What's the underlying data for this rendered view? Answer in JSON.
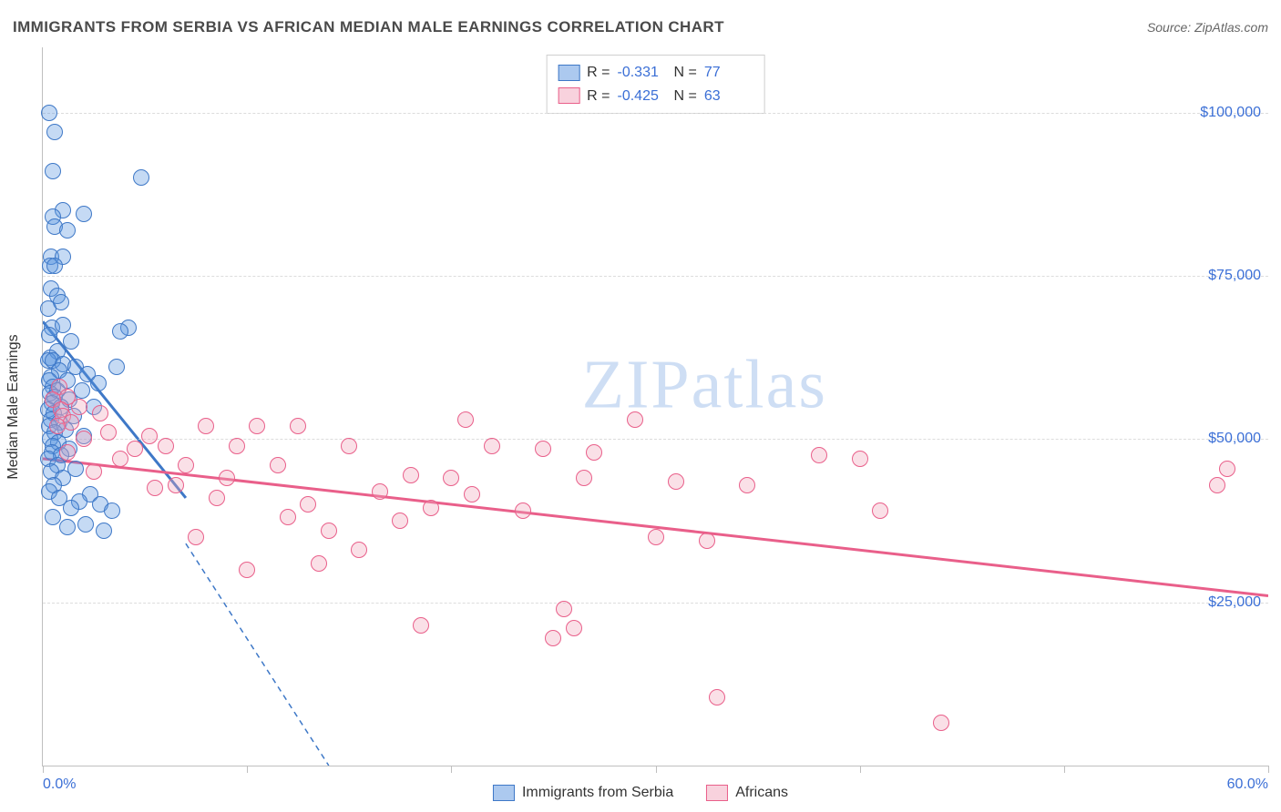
{
  "header": {
    "title": "IMMIGRANTS FROM SERBIA VS AFRICAN MEDIAN MALE EARNINGS CORRELATION CHART",
    "source": "Source: ZipAtlas.com"
  },
  "watermark": {
    "text": "ZIPatlas",
    "color": "#cedef4"
  },
  "chart": {
    "type": "scatter",
    "background_color": "#ffffff",
    "grid_color": "#dcdcdc",
    "axis_color": "#bfbfbf",
    "text_color": "#333333",
    "ylabel": "Median Male Earnings",
    "ylabel_fontsize": 16,
    "xlim": [
      0,
      60
    ],
    "ylim": [
      0,
      110000
    ],
    "ytick_values": [
      25000,
      50000,
      75000,
      100000
    ],
    "ytick_labels": [
      "$25,000",
      "$50,000",
      "$75,000",
      "$100,000"
    ],
    "ytick_color": "#3b6fd6",
    "xtick_values": [
      0,
      10,
      20,
      30,
      40,
      50,
      60
    ],
    "xlabel_min": "0.0%",
    "xlabel_max": "60.0%",
    "marker_radius": 8,
    "marker_stroke_width": 1.5,
    "marker_fill_opacity": 0.35,
    "series": [
      {
        "name": "Immigrants from Serbia",
        "color": "#5a94df",
        "stroke": "#3e78c7",
        "trend": {
          "x0": 0,
          "y0": 68000,
          "x1": 7,
          "y1": 41000,
          "solid_until_x": 7,
          "dash_to_x": 14,
          "dash_to_y": 0,
          "width": 3
        },
        "stats": {
          "R": "-0.331",
          "N": "77"
        },
        "points": [
          [
            0.3,
            100000
          ],
          [
            0.6,
            97000
          ],
          [
            0.5,
            91000
          ],
          [
            4.8,
            90000
          ],
          [
            1.0,
            85000
          ],
          [
            2.0,
            84500
          ],
          [
            0.5,
            84000
          ],
          [
            0.6,
            82500
          ],
          [
            1.2,
            82000
          ],
          [
            0.4,
            78000
          ],
          [
            1.0,
            78000
          ],
          [
            0.35,
            76500
          ],
          [
            0.6,
            76500
          ],
          [
            0.4,
            73000
          ],
          [
            0.7,
            72000
          ],
          [
            0.9,
            71000
          ],
          [
            0.25,
            70000
          ],
          [
            0.45,
            67000
          ],
          [
            1.0,
            67500
          ],
          [
            4.2,
            67000
          ],
          [
            3.8,
            66500
          ],
          [
            0.3,
            66000
          ],
          [
            1.4,
            65000
          ],
          [
            0.7,
            63500
          ],
          [
            0.35,
            62500
          ],
          [
            0.25,
            62000
          ],
          [
            0.5,
            62000
          ],
          [
            1.0,
            61500
          ],
          [
            1.6,
            61000
          ],
          [
            3.6,
            61000
          ],
          [
            0.8,
            60500
          ],
          [
            2.2,
            60000
          ],
          [
            0.4,
            59500
          ],
          [
            0.3,
            59000
          ],
          [
            1.2,
            59000
          ],
          [
            2.7,
            58500
          ],
          [
            0.5,
            58000
          ],
          [
            0.7,
            57500
          ],
          [
            1.9,
            57500
          ],
          [
            0.35,
            57000
          ],
          [
            0.6,
            56500
          ],
          [
            1.3,
            56000
          ],
          [
            0.45,
            55500
          ],
          [
            0.9,
            55000
          ],
          [
            2.5,
            55000
          ],
          [
            0.25,
            54500
          ],
          [
            0.55,
            54000
          ],
          [
            1.5,
            53500
          ],
          [
            0.4,
            53000
          ],
          [
            0.8,
            52500
          ],
          [
            0.3,
            52000
          ],
          [
            1.1,
            51500
          ],
          [
            0.6,
            51000
          ],
          [
            2.0,
            50500
          ],
          [
            0.35,
            50000
          ],
          [
            0.75,
            49500
          ],
          [
            0.5,
            49000
          ],
          [
            1.3,
            48500
          ],
          [
            0.45,
            48000
          ],
          [
            0.9,
            47500
          ],
          [
            0.25,
            47000
          ],
          [
            0.7,
            46000
          ],
          [
            1.6,
            45500
          ],
          [
            0.4,
            45000
          ],
          [
            1.0,
            44000
          ],
          [
            0.55,
            43000
          ],
          [
            0.3,
            42000
          ],
          [
            2.3,
            41500
          ],
          [
            0.8,
            41000
          ],
          [
            1.8,
            40500
          ],
          [
            2.8,
            40000
          ],
          [
            1.4,
            39500
          ],
          [
            3.4,
            39000
          ],
          [
            0.5,
            38000
          ],
          [
            2.1,
            37000
          ],
          [
            1.2,
            36500
          ],
          [
            3.0,
            36000
          ]
        ]
      },
      {
        "name": "Africans",
        "color": "#f2a6bb",
        "stroke": "#e95f8a",
        "trend": {
          "x0": 0,
          "y0": 47000,
          "x1": 60,
          "y1": 26000,
          "solid_until_x": 60,
          "width": 3
        },
        "stats": {
          "R": "-0.425",
          "N": "63"
        },
        "points": [
          [
            0.8,
            58000
          ],
          [
            1.2,
            56500
          ],
          [
            0.5,
            56000
          ],
          [
            1.8,
            55000
          ],
          [
            0.9,
            54500
          ],
          [
            2.8,
            54000
          ],
          [
            1.0,
            53500
          ],
          [
            1.4,
            52500
          ],
          [
            0.7,
            52000
          ],
          [
            20.7,
            53000
          ],
          [
            29.0,
            53000
          ],
          [
            3.2,
            51000
          ],
          [
            5.2,
            50500
          ],
          [
            8.0,
            52000
          ],
          [
            10.5,
            52000
          ],
          [
            12.5,
            52000
          ],
          [
            2.0,
            50000
          ],
          [
            6.0,
            49000
          ],
          [
            4.5,
            48500
          ],
          [
            1.2,
            48000
          ],
          [
            9.5,
            49000
          ],
          [
            15.0,
            49000
          ],
          [
            22.0,
            49000
          ],
          [
            24.5,
            48500
          ],
          [
            27.0,
            48000
          ],
          [
            38.0,
            47500
          ],
          [
            40.0,
            47000
          ],
          [
            3.8,
            47000
          ],
          [
            7.0,
            46000
          ],
          [
            11.5,
            46000
          ],
          [
            58.0,
            45500
          ],
          [
            2.5,
            45000
          ],
          [
            18.0,
            44500
          ],
          [
            20.0,
            44000
          ],
          [
            26.5,
            44000
          ],
          [
            31.0,
            43500
          ],
          [
            34.5,
            43000
          ],
          [
            57.5,
            43000
          ],
          [
            5.5,
            42500
          ],
          [
            16.5,
            42000
          ],
          [
            21.0,
            41500
          ],
          [
            8.5,
            41000
          ],
          [
            13.0,
            40000
          ],
          [
            19.0,
            39500
          ],
          [
            23.5,
            39000
          ],
          [
            41.0,
            39000
          ],
          [
            12.0,
            38000
          ],
          [
            17.5,
            37500
          ],
          [
            14.0,
            36000
          ],
          [
            7.5,
            35000
          ],
          [
            30.0,
            35000
          ],
          [
            32.5,
            34500
          ],
          [
            15.5,
            33000
          ],
          [
            13.5,
            31000
          ],
          [
            10.0,
            30000
          ],
          [
            25.5,
            24000
          ],
          [
            18.5,
            21500
          ],
          [
            26.0,
            21000
          ],
          [
            25.0,
            19500
          ],
          [
            33.0,
            10500
          ],
          [
            44.0,
            6500
          ],
          [
            9.0,
            44000
          ],
          [
            6.5,
            43000
          ]
        ]
      }
    ]
  },
  "stats_box": {
    "label_R": "R =",
    "label_N": "N ="
  },
  "bottom_legend": {
    "items": [
      "Immigrants from Serbia",
      "Africans"
    ]
  }
}
